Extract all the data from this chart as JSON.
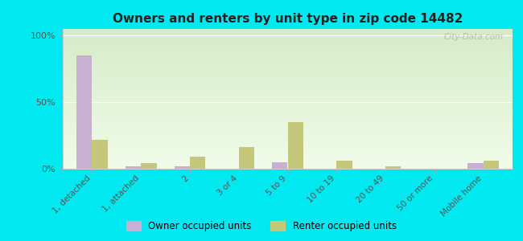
{
  "title": "Owners and renters by unit type in zip code 14482",
  "categories": [
    "1, detached",
    "1, attached",
    "2",
    "3 or 4",
    "5 to 9",
    "10 to 19",
    "20 to 49",
    "50 or more",
    "Mobile home"
  ],
  "owner_values": [
    85,
    2,
    2,
    0,
    5,
    0,
    0,
    0,
    4
  ],
  "renter_values": [
    22,
    4,
    9,
    16,
    35,
    6,
    2,
    0,
    6
  ],
  "owner_color": "#c9afd4",
  "renter_color": "#c5c87a",
  "background_grad_top": "#d6ecc8",
  "background_grad_bottom": "#f0fce8",
  "outer_bg": "#00e8f0",
  "ylabel_ticks": [
    "0%",
    "50%",
    "100%"
  ],
  "ytick_vals": [
    0,
    50,
    100
  ],
  "ylim": [
    0,
    105
  ],
  "bar_width": 0.32,
  "legend_owner": "Owner occupied units",
  "legend_renter": "Renter occupied units",
  "watermark": "City-Data.com"
}
